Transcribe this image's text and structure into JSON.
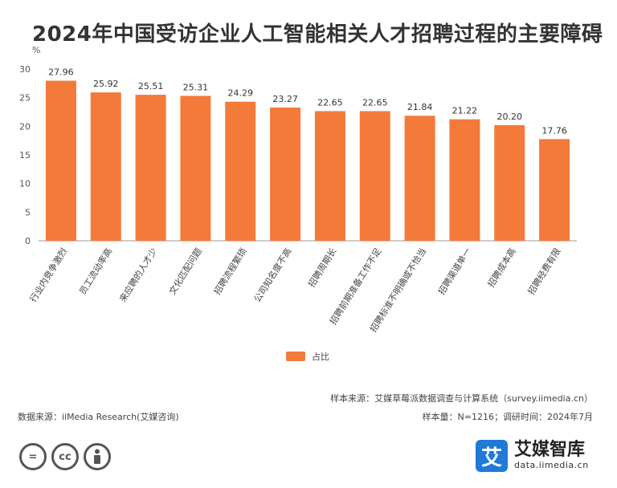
{
  "chart_data": {
    "type": "bar",
    "title": "2024年中国受访企业人工智能相关人才招聘过程的主要障碍",
    "ylabel": "%",
    "ylim": [
      0,
      30
    ],
    "yticks": [
      0,
      5,
      10,
      15,
      20,
      25,
      30
    ],
    "categories": [
      "行业内竞争激烈",
      "员工流动率高",
      "来应聘的人才少",
      "文化匹配问题",
      "招聘流程繁琐",
      "公司知名度不高",
      "招聘周期长",
      "招聘前期准备工作不足",
      "招聘标准不明确或不恰当",
      "招聘渠道单一",
      "招聘成本高",
      "招聘经费有限"
    ],
    "value_labels": [
      "27.96",
      "25.92",
      "25.51",
      "25.31",
      "24.29",
      "23.27",
      "22.65",
      "22.65",
      "21.84",
      "21.22",
      "20.20",
      "17.76"
    ],
    "series": [
      {
        "name": "占比",
        "color": "#f47a3a",
        "values": [
          27.96,
          25.92,
          25.51,
          25.31,
          24.29,
          23.27,
          22.65,
          22.65,
          21.84,
          21.22,
          20.2,
          17.76
        ]
      }
    ],
    "legend": "bottom-center",
    "grid": false
  },
  "footer": {
    "sample_source": "样本来源：艾媒草莓派数据调查与计算系统（survey.iimedia.cn）",
    "data_source": "数据来源：iiMedia Research(艾媒咨询)",
    "sample_size": "样本量：N=1216；调研时间：2024年7月"
  },
  "license_icons": [
    "equals-icon",
    "cc-icon",
    "person-icon"
  ],
  "license_text": [
    "=",
    "cc"
  ],
  "brand": {
    "logo_char": "艾",
    "name": "艾媒智库",
    "url": "data.iimedia.cn",
    "color": "#1f7ad8"
  }
}
